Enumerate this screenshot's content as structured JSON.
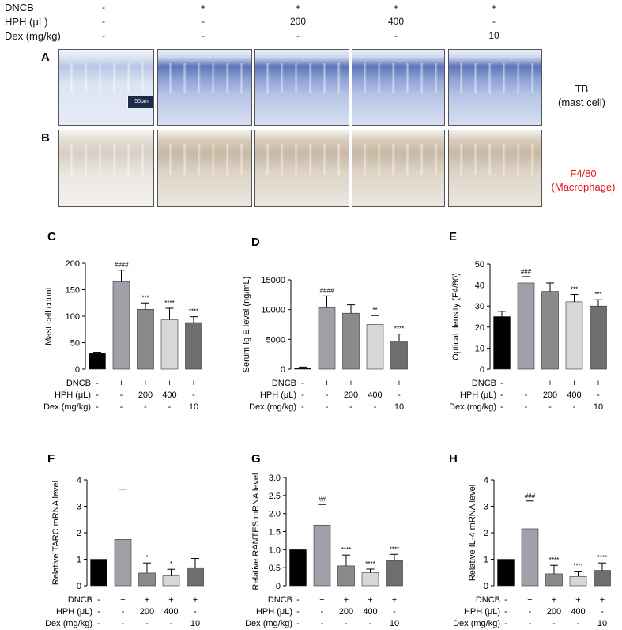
{
  "header": {
    "rows": [
      {
        "label": "DNCB",
        "values": [
          "-",
          "+",
          "+",
          "+",
          "+"
        ]
      },
      {
        "label": "HPH (μL)",
        "values": [
          "-",
          "-",
          "200",
          "400",
          "-"
        ]
      },
      {
        "label": "Dex (mg/kg)",
        "values": [
          "-",
          "-",
          "-",
          "-",
          "10"
        ]
      }
    ]
  },
  "histology": {
    "panel_a": {
      "letter": "A",
      "stain_label_1": "TB",
      "stain_label_2": "(mast cell)",
      "scale_bar": "50um"
    },
    "panel_b": {
      "letter": "B",
      "stain_label_1": "F4/80",
      "stain_label_2": "(Macrophage)",
      "label_color": "#e8141c"
    }
  },
  "colors": {
    "bar_fills": [
      "#000000",
      "#a0a0a8",
      "#8a8a8a",
      "#d7d7d7",
      "#6e6e6e"
    ],
    "red_label": "#e8141c"
  },
  "chart_data": [
    {
      "id": "C",
      "type": "bar",
      "letter": "C",
      "ylabel": "Mast cell count",
      "ylim": [
        0,
        200
      ],
      "yticks": [
        0,
        50,
        100,
        150,
        200
      ],
      "tick_labels": [
        "0",
        "50",
        "100",
        "150",
        "200"
      ],
      "values": [
        30,
        165,
        113,
        93,
        88
      ],
      "errors": [
        2,
        22,
        12,
        22,
        11
      ],
      "annotations": [
        "",
        "####",
        "***",
        "****",
        "****"
      ],
      "rows": [
        {
          "label": "DNCB",
          "values": [
            "-",
            "+",
            "+",
            "+",
            "+"
          ]
        },
        {
          "label": "HPH (μL)",
          "values": [
            "-",
            "-",
            "200",
            "400",
            "-"
          ]
        },
        {
          "label": "Dex (mg/kg)",
          "values": [
            "-",
            "-",
            "-",
            "-",
            "10"
          ]
        }
      ]
    },
    {
      "id": "D",
      "type": "bar",
      "letter": "D",
      "ylabel": "Serum Ig E level (ng/mL)",
      "ylim": [
        0,
        15000
      ],
      "yticks": [
        0,
        5000,
        10000,
        15000
      ],
      "tick_labels": [
        "0",
        "5000",
        "10000",
        "15000"
      ],
      "values": [
        200,
        10300,
        9400,
        7500,
        4700
      ],
      "errors": [
        150,
        2000,
        1400,
        1500,
        1200
      ],
      "annotations": [
        "",
        "####",
        "",
        "**",
        "****"
      ],
      "rows": [
        {
          "label": "DNCB",
          "values": [
            "-",
            "+",
            "+",
            "+",
            "+"
          ]
        },
        {
          "label": "HPH (μL)",
          "values": [
            "-",
            "-",
            "200",
            "400",
            "-"
          ]
        },
        {
          "label": "Dex (mg/kg)",
          "values": [
            "-",
            "-",
            "-",
            "-",
            "10"
          ]
        }
      ]
    },
    {
      "id": "E",
      "type": "bar",
      "letter": "E",
      "ylabel": "Optical density (F4/80)",
      "ylim": [
        0,
        50
      ],
      "yticks": [
        0,
        10,
        20,
        30,
        40,
        50
      ],
      "tick_labels": [
        "0",
        "10",
        "20",
        "30",
        "40",
        "50"
      ],
      "values": [
        25,
        41,
        37,
        32,
        30
      ],
      "errors": [
        2.5,
        3,
        4,
        3.5,
        3
      ],
      "annotations": [
        "",
        "###",
        "",
        "***",
        "***"
      ],
      "rows": [
        {
          "label": "DNCB",
          "values": [
            "-",
            "+",
            "+",
            "+",
            "+"
          ]
        },
        {
          "label": "HPH (μL)",
          "values": [
            "-",
            "-",
            "200",
            "400",
            "-"
          ]
        },
        {
          "label": "Dex (mg/kg)",
          "values": [
            "-",
            "-",
            "-",
            "-",
            "10"
          ]
        }
      ]
    },
    {
      "id": "F",
      "type": "bar",
      "letter": "F",
      "ylabel": "Relative TARC mRNA level",
      "ylim": [
        0,
        4
      ],
      "yticks": [
        0,
        1,
        2,
        3,
        4
      ],
      "tick_labels": [
        "0",
        "1",
        "2",
        "3",
        "4"
      ],
      "values": [
        1.0,
        1.75,
        0.48,
        0.37,
        0.68
      ],
      "errors": [
        0,
        1.9,
        0.38,
        0.25,
        0.35
      ],
      "annotations": [
        "",
        "",
        "*",
        "*",
        ""
      ],
      "rows": [
        {
          "label": "DNCB",
          "values": [
            "-",
            "+",
            "+",
            "+",
            "+"
          ]
        },
        {
          "label": "HPH (μL)",
          "values": [
            "-",
            "-",
            "200",
            "400",
            "-"
          ]
        },
        {
          "label": "Dex (mg/kg)",
          "values": [
            "-",
            "-",
            "-",
            "-",
            "10"
          ]
        }
      ]
    },
    {
      "id": "G",
      "type": "bar",
      "letter": "G",
      "ylabel": "Relative RANTES mRNA level",
      "ylim": [
        0,
        3.0
      ],
      "yticks": [
        0,
        0.5,
        1.0,
        1.5,
        2.0,
        2.5,
        3.0
      ],
      "tick_labels": [
        "0",
        "0.5",
        "1.0",
        "1.5",
        "2.0",
        "2.5",
        "3.0"
      ],
      "values": [
        1.0,
        1.68,
        0.55,
        0.36,
        0.7
      ],
      "errors": [
        0,
        0.57,
        0.3,
        0.1,
        0.17
      ],
      "annotations": [
        "",
        "##",
        "****",
        "****",
        "****"
      ],
      "rows": [
        {
          "label": "DNCB",
          "values": [
            "-",
            "+",
            "+",
            "+",
            "+"
          ]
        },
        {
          "label": "HPH (μL)",
          "values": [
            "-",
            "-",
            "200",
            "400",
            "-"
          ]
        },
        {
          "label": "Dex (mg/kg)",
          "values": [
            "-",
            "-",
            "-",
            "-",
            "10"
          ]
        }
      ]
    },
    {
      "id": "H",
      "type": "bar",
      "letter": "H",
      "ylabel": "Relative IL-4 mRNA level",
      "ylim": [
        0,
        4
      ],
      "yticks": [
        0,
        1,
        2,
        3,
        4
      ],
      "tick_labels": [
        "0",
        "1",
        "2",
        "3",
        "4"
      ],
      "values": [
        1.0,
        2.15,
        0.45,
        0.35,
        0.58
      ],
      "errors": [
        0,
        1.05,
        0.32,
        0.2,
        0.28
      ],
      "annotations": [
        "",
        "###",
        "****",
        "****",
        "****"
      ],
      "rows": [
        {
          "label": "DNCB",
          "values": [
            "-",
            "+",
            "+",
            "+",
            "+"
          ]
        },
        {
          "label": "HPH (μL)",
          "values": [
            "-",
            "-",
            "200",
            "400",
            "-"
          ]
        },
        {
          "label": "Dex (mg/kg)",
          "values": [
            "-",
            "-",
            "-",
            "-",
            "10"
          ]
        }
      ]
    }
  ]
}
